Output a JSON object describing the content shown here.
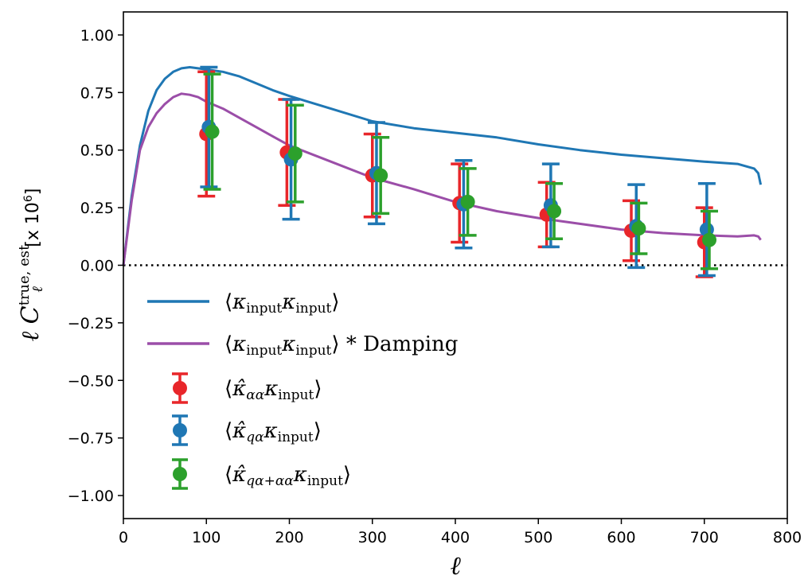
{
  "chart_data": {
    "type": "line",
    "xlabel": "ℓ",
    "ylabel": {
      "prefix": "ℓ C",
      "subscript": "ℓ",
      "superscript": "true, est",
      "suffix": "[x 10",
      "exponent": "6",
      "close": "]"
    },
    "xlim": [
      0,
      800
    ],
    "ylim": [
      -1.1,
      1.1
    ],
    "xticks": [
      0,
      100,
      200,
      300,
      400,
      500,
      600,
      700,
      800
    ],
    "yticks": [
      1.0,
      0.75,
      0.5,
      0.25,
      0.0,
      -0.25,
      -0.5,
      -0.75,
      -1.0
    ],
    "xtick_labels": [
      "0",
      "100",
      "200",
      "300",
      "400",
      "500",
      "600",
      "700",
      "800"
    ],
    "ytick_labels": [
      "1.00",
      "0.75",
      "0.50",
      "0.25",
      "0.00",
      "−0.25",
      "−0.50",
      "−0.75",
      "−1.00"
    ],
    "zero_line": {
      "y": 0,
      "style": "dotted",
      "color": "#000000"
    },
    "grid": false,
    "legend_position": "left",
    "lines": [
      {
        "name": "⟨κinputκinput⟩",
        "color": "#1f77b4",
        "x": [
          0,
          10,
          20,
          30,
          40,
          50,
          60,
          70,
          80,
          90,
          100,
          120,
          140,
          160,
          180,
          200,
          250,
          300,
          350,
          400,
          450,
          500,
          550,
          600,
          650,
          700,
          740,
          760,
          765,
          768
        ],
        "y": [
          0,
          0.3,
          0.52,
          0.67,
          0.76,
          0.81,
          0.84,
          0.855,
          0.86,
          0.855,
          0.85,
          0.84,
          0.82,
          0.79,
          0.76,
          0.735,
          0.68,
          0.625,
          0.595,
          0.575,
          0.555,
          0.525,
          0.5,
          0.48,
          0.465,
          0.45,
          0.44,
          0.42,
          0.4,
          0.35
        ]
      },
      {
        "name": "⟨κinputκinput⟩ * Damping",
        "color": "#9b4ea8",
        "x": [
          0,
          10,
          20,
          30,
          40,
          50,
          60,
          70,
          80,
          90,
          100,
          120,
          140,
          160,
          180,
          200,
          250,
          300,
          350,
          400,
          450,
          500,
          550,
          600,
          650,
          700,
          740,
          760,
          765,
          768
        ],
        "y": [
          0,
          0.28,
          0.5,
          0.6,
          0.66,
          0.7,
          0.73,
          0.745,
          0.74,
          0.73,
          0.71,
          0.68,
          0.64,
          0.6,
          0.56,
          0.52,
          0.45,
          0.38,
          0.33,
          0.275,
          0.235,
          0.205,
          0.18,
          0.155,
          0.14,
          0.13,
          0.125,
          0.13,
          0.125,
          0.11
        ]
      }
    ],
    "series": [
      {
        "name": "⟨κ̂αακinput⟩",
        "color": "#e8262a",
        "x": [
          100,
          197,
          300,
          405,
          510,
          612,
          700
        ],
        "y": [
          0.57,
          0.49,
          0.39,
          0.27,
          0.22,
          0.15,
          0.1
        ],
        "yerr": [
          0.27,
          0.23,
          0.18,
          0.17,
          0.14,
          0.13,
          0.15
        ]
      },
      {
        "name": "⟨κ̂qακinput⟩",
        "color": "#1f77b4",
        "x": [
          103,
          202,
          305,
          410,
          515,
          618,
          703
        ],
        "y": [
          0.6,
          0.46,
          0.4,
          0.265,
          0.26,
          0.17,
          0.155
        ],
        "yerr": [
          0.26,
          0.26,
          0.22,
          0.19,
          0.18,
          0.18,
          0.2
        ]
      },
      {
        "name": "⟨κ̂qα+αακinput⟩",
        "color": "#2ca02c",
        "x": [
          107,
          207,
          310,
          415,
          519,
          621,
          706
        ],
        "y": [
          0.58,
          0.485,
          0.39,
          0.275,
          0.235,
          0.16,
          0.11
        ],
        "yerr": [
          0.25,
          0.21,
          0.165,
          0.145,
          0.12,
          0.11,
          0.125
        ]
      }
    ],
    "legend": [
      {
        "kind": "line",
        "color": "#1f77b4",
        "base": "κ",
        "sub1": "input",
        "base2": "κ",
        "sub2": "input",
        "suffix": ""
      },
      {
        "kind": "line",
        "color": "#9b4ea8",
        "base": "κ",
        "sub1": "input",
        "base2": "κ",
        "sub2": "input",
        "suffix": " * Damping"
      },
      {
        "kind": "marker",
        "color": "#e8262a",
        "base": "κ̂",
        "sub1": "αα",
        "base2": "κ",
        "sub2": "input",
        "suffix": ""
      },
      {
        "kind": "marker",
        "color": "#1f77b4",
        "base": "κ̂",
        "sub1": "qα",
        "base2": "κ",
        "sub2": "input",
        "suffix": ""
      },
      {
        "kind": "marker",
        "color": "#2ca02c",
        "base": "κ̂",
        "sub1": "qα+αα",
        "base2": "κ",
        "sub2": "input",
        "suffix": ""
      }
    ]
  }
}
